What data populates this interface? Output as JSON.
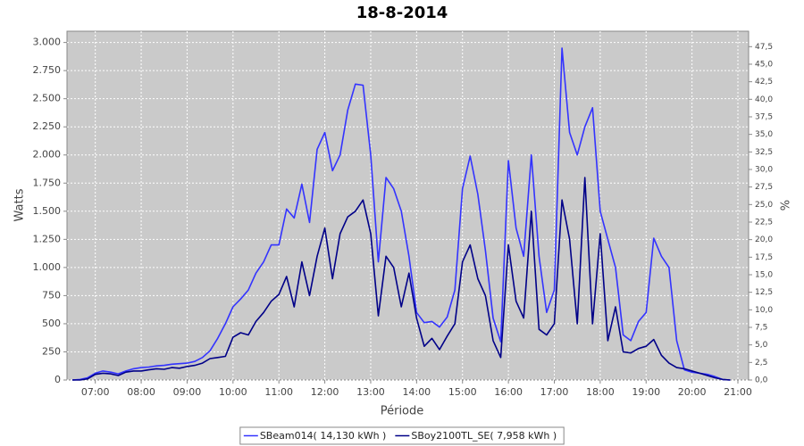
{
  "chart_data": {
    "type": "line",
    "title": "18-8-2014",
    "x_label": "Période",
    "y_label": "Watts",
    "y2_label": "%",
    "x": [
      "06:30",
      "06:40",
      "06:50",
      "07:00",
      "07:10",
      "07:20",
      "07:30",
      "07:40",
      "07:50",
      "08:00",
      "08:10",
      "08:20",
      "08:30",
      "08:40",
      "08:50",
      "09:00",
      "09:10",
      "09:20",
      "09:30",
      "09:40",
      "09:50",
      "10:00",
      "10:10",
      "10:20",
      "10:30",
      "10:40",
      "10:50",
      "11:00",
      "11:10",
      "11:20",
      "11:30",
      "11:40",
      "11:50",
      "12:00",
      "12:10",
      "12:20",
      "12:30",
      "12:40",
      "12:50",
      "13:00",
      "13:10",
      "13:20",
      "13:30",
      "13:40",
      "13:50",
      "14:00",
      "14:10",
      "14:20",
      "14:30",
      "14:40",
      "14:50",
      "15:00",
      "15:10",
      "15:20",
      "15:30",
      "15:40",
      "15:50",
      "16:00",
      "16:10",
      "16:20",
      "16:30",
      "16:40",
      "16:50",
      "17:00",
      "17:10",
      "17:20",
      "17:30",
      "17:40",
      "17:50",
      "18:00",
      "18:10",
      "18:20",
      "18:30",
      "18:40",
      "18:50",
      "19:00",
      "19:10",
      "19:20",
      "19:30",
      "19:40",
      "19:50",
      "20:00",
      "20:10",
      "20:20",
      "20:30",
      "20:40",
      "20:50"
    ],
    "series": [
      {
        "name": "SBeam014( 14,130 kWh )",
        "color": "#3333ff",
        "values": [
          0,
          5,
          20,
          60,
          80,
          70,
          55,
          80,
          100,
          110,
          115,
          125,
          130,
          140,
          145,
          150,
          165,
          200,
          260,
          370,
          500,
          650,
          720,
          800,
          950,
          1050,
          1200,
          1200,
          1520,
          1440,
          1740,
          1400,
          2050,
          2200,
          1860,
          2000,
          2400,
          2630,
          2620,
          2000,
          1050,
          1800,
          1700,
          1500,
          1100,
          600,
          510,
          520,
          470,
          560,
          800,
          1700,
          1990,
          1650,
          1150,
          550,
          340,
          1950,
          1350,
          1100,
          2000,
          1100,
          600,
          800,
          2950,
          2200,
          2000,
          2250,
          2420,
          1500,
          1250,
          1000,
          400,
          350,
          520,
          600,
          1260,
          1100,
          1000,
          350,
          90,
          70,
          60,
          50,
          30,
          5,
          0
        ]
      },
      {
        "name": "SBoy2100TL_SE( 7,958 kWh )",
        "color": "#000088",
        "values": [
          0,
          0,
          10,
          50,
          60,
          55,
          40,
          70,
          80,
          80,
          90,
          100,
          95,
          110,
          105,
          120,
          130,
          150,
          190,
          200,
          210,
          380,
          420,
          400,
          520,
          600,
          700,
          760,
          920,
          650,
          1050,
          750,
          1100,
          1350,
          900,
          1300,
          1450,
          1500,
          1600,
          1300,
          570,
          1100,
          1000,
          650,
          950,
          550,
          300,
          370,
          270,
          390,
          500,
          1050,
          1200,
          900,
          750,
          350,
          200,
          1200,
          700,
          550,
          1500,
          450,
          400,
          500,
          1600,
          1250,
          500,
          1800,
          500,
          1300,
          350,
          650,
          250,
          240,
          280,
          300,
          360,
          220,
          150,
          110,
          100,
          80,
          60,
          40,
          20,
          5,
          0
        ]
      }
    ],
    "xlim": [
      "06:23",
      "21:14"
    ],
    "xticks": [
      "07:00",
      "08:00",
      "09:00",
      "10:00",
      "11:00",
      "12:00",
      "13:00",
      "14:00",
      "15:00",
      "16:00",
      "17:00",
      "18:00",
      "19:00",
      "20:00",
      "21:00"
    ],
    "ylim": [
      0,
      3100
    ],
    "yticks": [
      0,
      250,
      500,
      750,
      {
        "value": 1000,
        "label": "1.000"
      },
      {
        "value": 1250,
        "label": "1.250"
      },
      {
        "value": 1500,
        "label": "1.500"
      },
      {
        "value": 1750,
        "label": "1.750"
      },
      {
        "value": 2000,
        "label": "2.000"
      },
      {
        "value": 2250,
        "label": "2.250"
      },
      {
        "value": 2500,
        "label": "2.500"
      },
      {
        "value": 2750,
        "label": "2.750"
      },
      {
        "value": 3000,
        "label": "3.000"
      }
    ],
    "y2lim": [
      0,
      49.7
    ],
    "y2ticks": [
      {
        "value": 0,
        "label": "0,0"
      },
      {
        "value": 2.5,
        "label": "2,5"
      },
      {
        "value": 5,
        "label": "5,0"
      },
      {
        "value": 7.5,
        "label": "7,5"
      },
      {
        "value": 10,
        "label": "10,0"
      },
      {
        "value": 12.5,
        "label": "12,5"
      },
      {
        "value": 15,
        "label": "15,0"
      },
      {
        "value": 17.5,
        "label": "17,5"
      },
      {
        "value": 20,
        "label": "20,0"
      },
      {
        "value": 22.5,
        "label": "22,5"
      },
      {
        "value": 25,
        "label": "25,0"
      },
      {
        "value": 27.5,
        "label": "27,5"
      },
      {
        "value": 30,
        "label": "30,0"
      },
      {
        "value": 32.5,
        "label": "32,5"
      },
      {
        "value": 35,
        "label": "35,0"
      },
      {
        "value": 37.5,
        "label": "37,5"
      },
      {
        "value": 40,
        "label": "40,0"
      },
      {
        "value": 42.5,
        "label": "42,5"
      },
      {
        "value": 45,
        "label": "45,0"
      },
      {
        "value": 47.5,
        "label": "47,5"
      }
    ],
    "grid": true,
    "background": "#cacaca",
    "legend": "bottom"
  }
}
